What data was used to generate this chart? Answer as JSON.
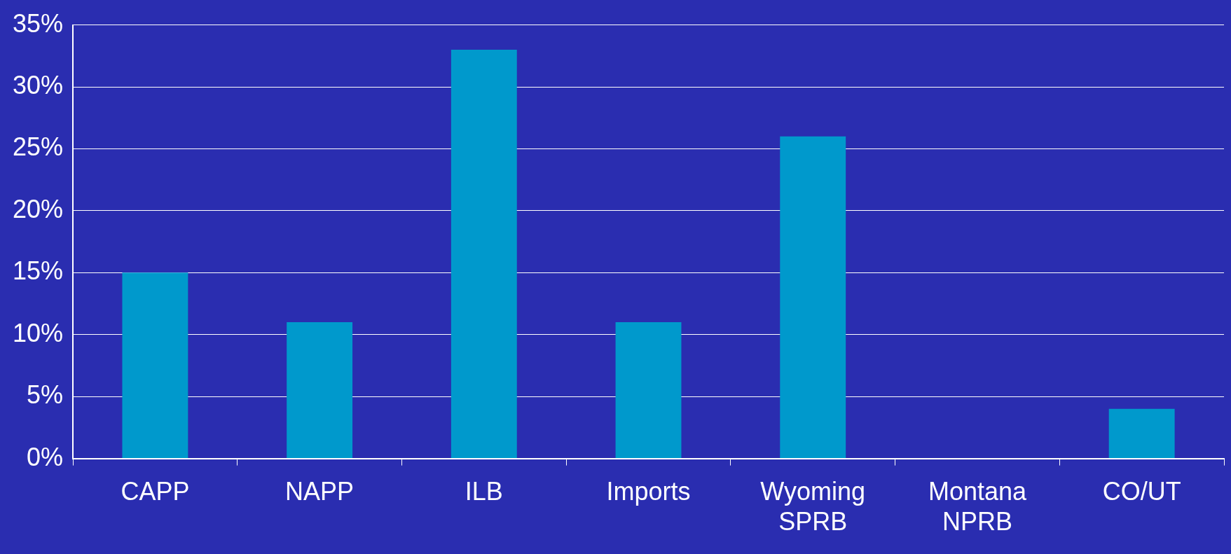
{
  "chart_data": {
    "type": "bar",
    "categories": [
      "CAPP",
      "NAPP",
      "ILB",
      "Imports",
      "Wyoming SPRB",
      "Montana NPRB",
      "CO/UT"
    ],
    "values": [
      15,
      11,
      33,
      11,
      26,
      0,
      4
    ],
    "color": "#0099cc",
    "ylim": [
      0,
      35
    ],
    "yticks": [
      {
        "value": 0,
        "label": "0%"
      },
      {
        "value": 5,
        "label": "5%"
      },
      {
        "value": 10,
        "label": "10%"
      },
      {
        "value": 15,
        "label": "15%"
      },
      {
        "value": 20,
        "label": "20%"
      },
      {
        "value": 25,
        "label": "25%"
      },
      {
        "value": 30,
        "label": "30%"
      },
      {
        "value": 35,
        "label": "35%"
      }
    ],
    "grid": "y",
    "legend": false
  }
}
